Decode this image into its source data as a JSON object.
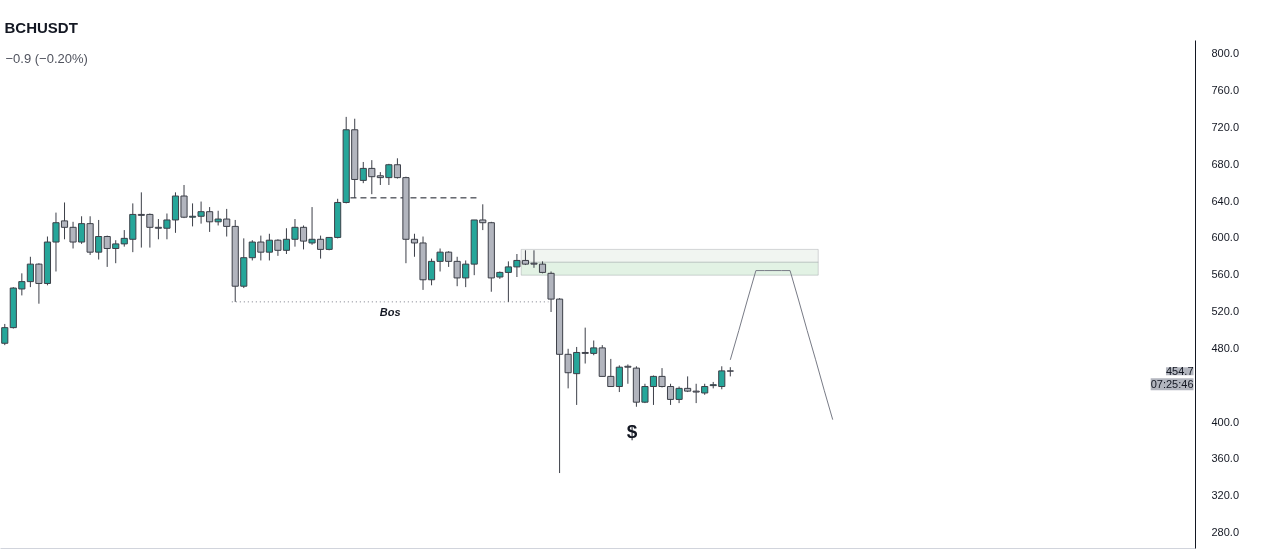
{
  "chart_data": {
    "type": "candlestick",
    "title": "BCHUSDT",
    "subtitle": "−0.9 (−0.20%)",
    "categories": [
      null,
      null,
      null,
      null,
      null,
      null,
      null,
      null,
      null,
      null,
      null,
      null,
      null,
      null,
      null,
      null,
      null,
      null,
      null,
      null,
      null,
      null,
      null,
      null,
      null,
      null,
      null,
      null,
      null,
      null,
      null,
      null,
      null,
      null,
      null,
      null,
      null,
      null,
      null,
      null,
      null,
      null,
      null,
      null,
      null,
      null,
      null,
      null,
      null,
      null,
      null,
      null,
      null,
      null,
      null,
      null,
      null,
      null,
      null,
      null,
      null,
      null,
      null,
      null,
      null,
      null,
      null,
      null,
      null,
      null,
      null,
      null,
      null,
      null,
      null,
      null,
      null,
      null,
      null,
      null,
      null,
      null,
      null,
      null,
      null,
      null,
      null,
      null,
      null,
      null,
      null,
      null,
      null,
      null,
      null,
      null,
      null,
      null,
      null,
      null,
      null,
      null,
      null,
      null,
      null,
      null,
      null,
      null,
      null,
      null,
      null,
      null,
      null,
      null,
      null,
      null,
      null,
      null,
      null,
      null,
      null,
      null,
      null,
      null,
      null,
      null,
      null,
      null,
      null,
      null,
      null,
      null,
      null,
      null,
      null,
      null,
      null,
      null,
      null,
      null
    ],
    "ohlc": [
      [
        485,
        506,
        483,
        502
      ],
      [
        502,
        546,
        501,
        545
      ],
      [
        544,
        561,
        537,
        552
      ],
      [
        552,
        579,
        546,
        571
      ],
      [
        571,
        572,
        528,
        550
      ],
      [
        550,
        601,
        548,
        595
      ],
      [
        595,
        627,
        563,
        616
      ],
      [
        618,
        638,
        598,
        611
      ],
      [
        611,
        617,
        588,
        595
      ],
      [
        595,
        623,
        593,
        615
      ],
      [
        615,
        623,
        581,
        584
      ],
      [
        584,
        619,
        576,
        601
      ],
      [
        601,
        602,
        568,
        588
      ],
      [
        588,
        597,
        572,
        593
      ],
      [
        593,
        608,
        590,
        599
      ],
      [
        598,
        637,
        584,
        625
      ],
      [
        625,
        649,
        589,
        624
      ],
      [
        625,
        626,
        589,
        611
      ],
      [
        611,
        620,
        598,
        610
      ],
      [
        610,
        626,
        598,
        619
      ],
      [
        619,
        649,
        605,
        645
      ],
      [
        645,
        657,
        621,
        622
      ],
      [
        622,
        637,
        612,
        623
      ],
      [
        623,
        639,
        615,
        628
      ],
      [
        628,
        633,
        606,
        617
      ],
      [
        617,
        629,
        613,
        620
      ],
      [
        620,
        631,
        601,
        612
      ],
      [
        612,
        619,
        530,
        547
      ],
      [
        547,
        599,
        545,
        578
      ],
      [
        578,
        597,
        575,
        595
      ],
      [
        595,
        602,
        575,
        584
      ],
      [
        584,
        604,
        575,
        597
      ],
      [
        597,
        598,
        580,
        586
      ],
      [
        586,
        610,
        582,
        598
      ],
      [
        598,
        620,
        590,
        611
      ],
      [
        611,
        613,
        587,
        596
      ],
      [
        594,
        633,
        592,
        598
      ],
      [
        598,
        602,
        577,
        587
      ],
      [
        587,
        600,
        586,
        600
      ],
      [
        600,
        642,
        599,
        638
      ],
      [
        638,
        731,
        637,
        717
      ],
      [
        717,
        729,
        643,
        663
      ],
      [
        662,
        682,
        659,
        675
      ],
      [
        675,
        684,
        647,
        666
      ],
      [
        667,
        671,
        657,
        665
      ],
      [
        665,
        680,
        657,
        679
      ],
      [
        679,
        686,
        664,
        665
      ],
      [
        665,
        666,
        572,
        598
      ],
      [
        598,
        604,
        579,
        594
      ],
      [
        594,
        601,
        543,
        554
      ],
      [
        554,
        577,
        548,
        574
      ],
      [
        574,
        588,
        563,
        584
      ],
      [
        584,
        585,
        568,
        574
      ],
      [
        574,
        579,
        547,
        556
      ],
      [
        556,
        575,
        546,
        571
      ],
      [
        571,
        619,
        559,
        619
      ],
      [
        619,
        636,
        608,
        616
      ],
      [
        616,
        617,
        541,
        556
      ],
      [
        557,
        563,
        555,
        562
      ],
      [
        562,
        574,
        530,
        568
      ],
      [
        568,
        582,
        557,
        575
      ],
      [
        575,
        586,
        570,
        571
      ],
      [
        572,
        586,
        567,
        571
      ],
      [
        571,
        574,
        561,
        562
      ],
      [
        561,
        563,
        519,
        533
      ],
      [
        533,
        534,
        344,
        473
      ],
      [
        473,
        479,
        436,
        453
      ],
      [
        452,
        481,
        418,
        475
      ],
      [
        475,
        502,
        463,
        474
      ],
      [
        474,
        488,
        472,
        480
      ],
      [
        480,
        483,
        449,
        449
      ],
      [
        449,
        468,
        438,
        438
      ],
      [
        438,
        461,
        432,
        459
      ],
      [
        460,
        462,
        441,
        459
      ],
      [
        458,
        460,
        416,
        421
      ],
      [
        421,
        441,
        420,
        438
      ],
      [
        438,
        450,
        418,
        449
      ],
      [
        449,
        458,
        437,
        438
      ],
      [
        438,
        441,
        418,
        424
      ],
      [
        424,
        438,
        420,
        436
      ],
      [
        436,
        449,
        432,
        433
      ],
      [
        433,
        441,
        420,
        432
      ],
      [
        431,
        441,
        429,
        438
      ],
      [
        439,
        443,
        436,
        440
      ],
      [
        438,
        460,
        435,
        455
      ],
      [
        455,
        459,
        449,
        454.7
      ],
      null,
      null,
      null,
      null,
      null,
      null,
      null,
      null,
      null,
      null,
      null,
      null,
      null,
      null,
      null,
      null,
      null,
      null,
      null,
      null,
      null,
      null,
      null,
      null,
      null,
      null,
      null,
      null,
      null,
      null,
      null,
      null,
      null,
      null,
      null,
      null,
      null,
      null,
      null,
      null,
      null,
      null,
      null,
      null,
      null,
      null,
      null,
      null,
      null,
      null,
      null,
      null,
      null,
      null
    ],
    "colors": [
      "#26a69a",
      "#26a69a",
      "#26a69a",
      "#26a69a",
      "#b2b5be",
      "#26a69a",
      "#26a69a",
      "#b2b5be",
      "#b2b5be",
      "#26a69a",
      "#b2b5be",
      "#26a69a",
      "#b2b5be",
      "#26a69a",
      "#26a69a",
      "#26a69a",
      "#b2b5be",
      "#b2b5be",
      "#b2b5be",
      "#26a69a",
      "#26a69a",
      "#b2b5be",
      "#26a69a",
      "#26a69a",
      "#b2b5be",
      "#26a69a",
      "#b2b5be",
      "#b2b5be",
      "#26a69a",
      "#26a69a",
      "#b2b5be",
      "#26a69a",
      "#b2b5be",
      "#26a69a",
      "#26a69a",
      "#b2b5be",
      "#26a69a",
      "#b2b5be",
      "#26a69a",
      "#26a69a",
      "#26a69a",
      "#b2b5be",
      "#26a69a",
      "#b2b5be",
      "#b2b5be",
      "#26a69a",
      "#b2b5be",
      "#b2b5be",
      "#b2b5be",
      "#b2b5be",
      "#26a69a",
      "#26a69a",
      "#b2b5be",
      "#b2b5be",
      "#26a69a",
      "#26a69a",
      "#b2b5be",
      "#b2b5be",
      "#26a69a",
      "#26a69a",
      "#26a69a",
      "#b2b5be",
      "#b2b5be",
      "#b2b5be",
      "#b2b5be",
      "#b2b5be",
      "#b2b5be",
      "#26a69a",
      "#b2b5be",
      "#26a69a",
      "#b2b5be",
      "#b2b5be",
      "#26a69a",
      "#b2b5be",
      "#b2b5be",
      "#26a69a",
      "#26a69a",
      "#b2b5be",
      "#b2b5be",
      "#26a69a",
      "#b2b5be",
      "#b2b5be",
      "#26a69a",
      "#26a69a",
      "#26a69a",
      "#b2b5be",
      null,
      null,
      null,
      null,
      null,
      null,
      null,
      null,
      null,
      null,
      null,
      null,
      null,
      null,
      null,
      null,
      null,
      null,
      null,
      null,
      null,
      null,
      null,
      null,
      null,
      null,
      null,
      null,
      null,
      null,
      null,
      null,
      null,
      null,
      null,
      null,
      null,
      null,
      null,
      null,
      null,
      null,
      null,
      null,
      null,
      null,
      null,
      null,
      null,
      null,
      null,
      null,
      null,
      null
    ],
    "series": [
      {
        "type": "line",
        "color": "#787b86",
        "values": [
          null,
          null,
          null,
          null,
          null,
          null,
          null,
          null,
          null,
          null,
          null,
          null,
          null,
          null,
          null,
          null,
          null,
          null,
          null,
          null,
          null,
          null,
          null,
          null,
          null,
          null,
          null,
          null,
          null,
          null,
          null,
          null,
          null,
          null,
          null,
          null,
          null,
          null,
          null,
          null,
          null,
          null,
          null,
          null,
          null,
          null,
          null,
          null,
          null,
          null,
          null,
          null,
          null,
          null,
          null,
          null,
          null,
          null,
          null,
          null,
          null,
          null,
          null,
          null,
          null,
          null,
          null,
          null,
          null,
          null,
          null,
          null,
          null,
          null,
          null,
          null,
          null,
          null,
          null,
          null,
          null,
          null,
          null,
          null,
          null,
          467,
          499,
          532,
          564,
          564,
          564,
          564,
          564,
          532,
          499,
          467,
          434,
          402,
          null,
          null,
          null,
          null,
          null,
          null,
          null,
          null,
          null,
          null,
          null,
          null,
          null,
          null,
          null,
          null,
          null,
          null,
          null,
          null,
          null,
          null,
          null,
          null,
          null,
          null,
          null,
          null,
          null,
          null,
          null,
          null,
          null,
          null,
          null,
          null,
          null,
          null,
          null,
          null,
          null,
          null
        ]
      }
    ],
    "ylim": [
      262,
      814
    ],
    "yticks": [
      {
        "value": 280,
        "label": "280.0"
      },
      {
        "value": 320,
        "label": "320.0"
      },
      {
        "value": 360,
        "label": "360.0"
      },
      {
        "value": 400,
        "label": "400.0"
      },
      {
        "value": 480,
        "label": "480.0"
      },
      {
        "value": 520,
        "label": "520.0"
      },
      {
        "value": 560,
        "label": "560.0"
      },
      {
        "value": 600,
        "label": "600.0"
      },
      {
        "value": 640,
        "label": "640.0"
      },
      {
        "value": 680,
        "label": "680.0"
      },
      {
        "value": 720,
        "label": "720.0"
      },
      {
        "value": 760,
        "label": "760.0"
      },
      {
        "value": 800,
        "label": "800.0"
      }
    ],
    "tick_labels": "y",
    "bands": [
      {
        "axis": "y",
        "from": 573,
        "to": 587,
        "color": "#f1f5f1"
      },
      {
        "axis": "y",
        "from": 559,
        "to": 573,
        "color": "#e2f2e4"
      }
    ],
    "ref_lines": [
      {
        "axis": "y",
        "value": 643,
        "line_style": "dashed",
        "color": "#131722"
      },
      {
        "axis": "y",
        "value": 530,
        "label": "Bos",
        "line_style": "dotted",
        "color": "#787b86"
      }
    ],
    "annotations": [
      "$",
      "454.7",
      "07:25:46"
    ]
  }
}
